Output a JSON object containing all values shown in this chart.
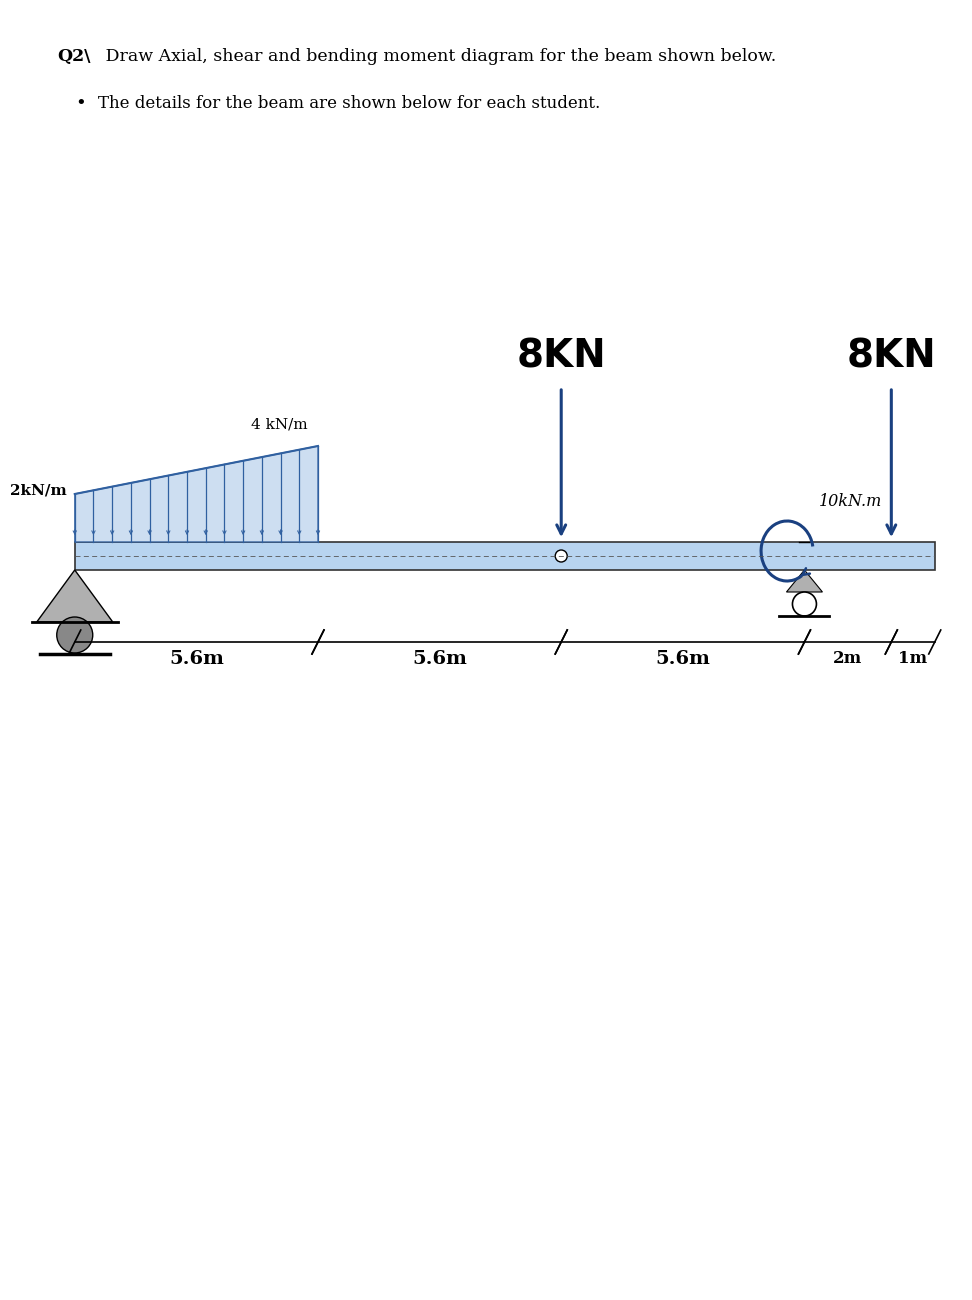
{
  "title_line1": "Q2\\ Draw Axial, shear and bending moment diagram for the beam shown below.",
  "bullet_line": "The details for the beam are shown below for each student.",
  "bg_color": "#ffffff",
  "beam_color": "#b8d4f0",
  "beam_outline": "#333333",
  "dist_load_color": "#3060a0",
  "arrow_color": "#1a4080",
  "load_label_8kn_1": "8KN",
  "load_label_8kn_2": "8KN",
  "dist_load_label_top": "4 kN/m",
  "dist_load_label_left": "2kN/m",
  "moment_label": "10kN.m",
  "span_labels": [
    "5.6m",
    "5.6m",
    "5.6m",
    "2m",
    "1m"
  ],
  "fig_width": 9.43,
  "fig_height": 12.8,
  "total_m": 19.8,
  "segments_m": [
    0,
    5.6,
    11.2,
    16.8,
    18.8,
    19.8
  ]
}
